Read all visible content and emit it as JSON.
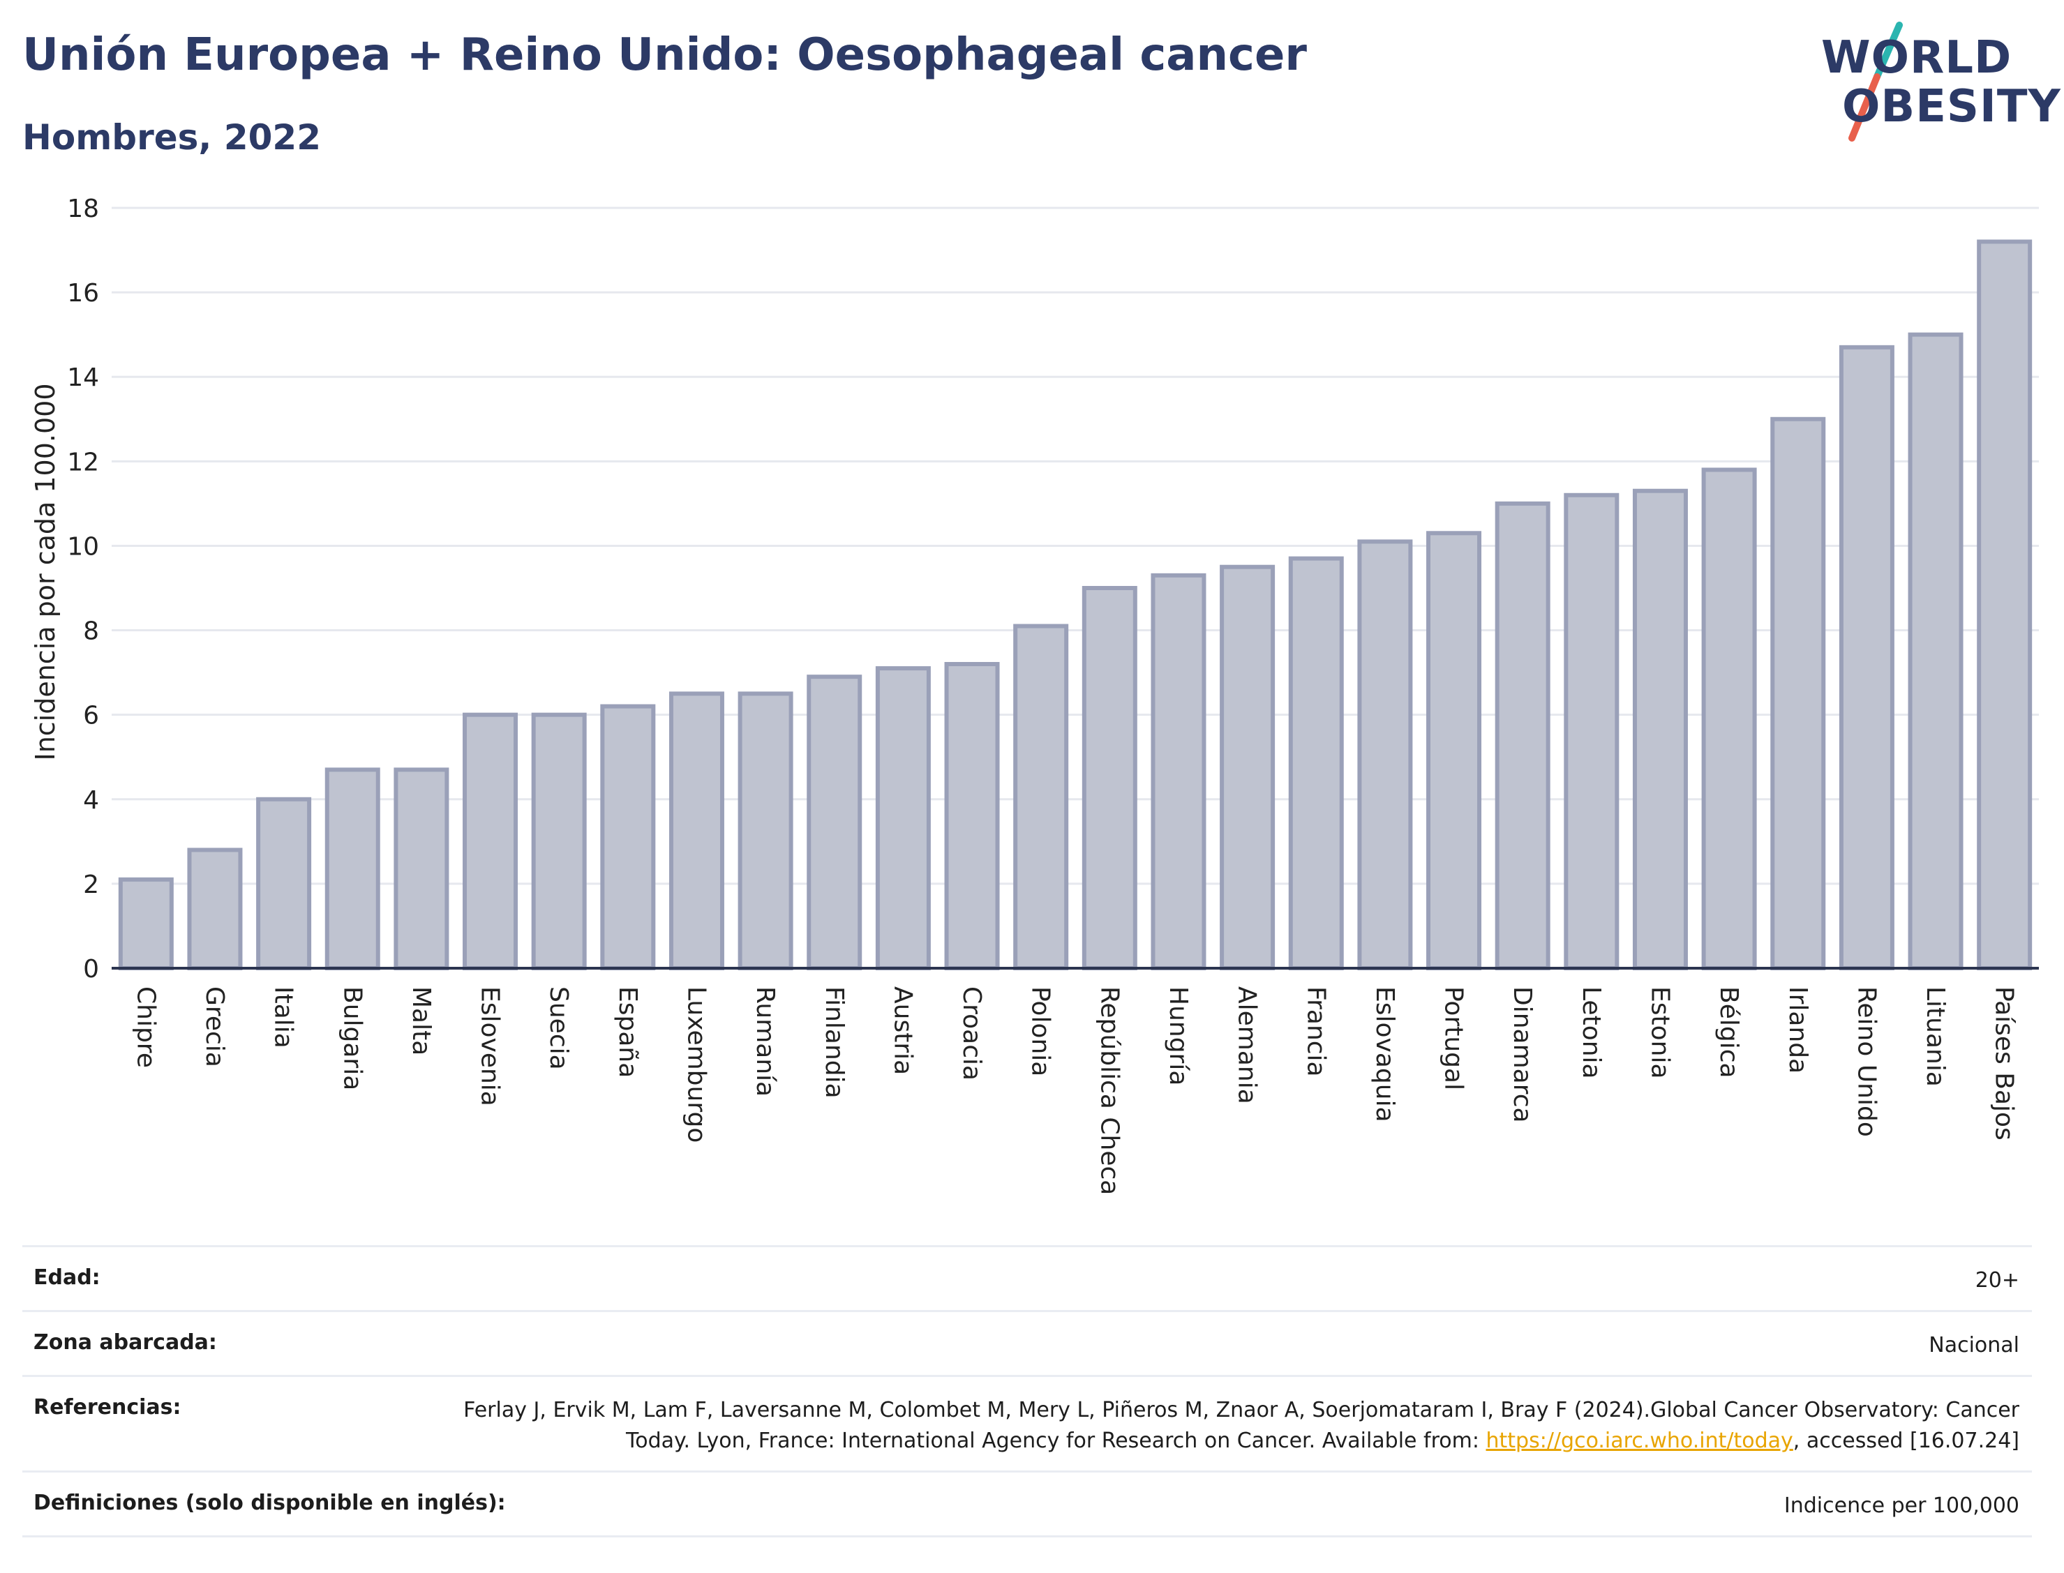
{
  "header": {
    "title": "Unión Europea + Reino Unido: Oesophageal cancer",
    "subtitle": "Hombres, 2022"
  },
  "logo": {
    "line1": "WORLD",
    "line2": "OBESITY",
    "slash_colors": [
      "#2bb5b0",
      "#e8604c"
    ]
  },
  "colors": {
    "bar_fill": "#bfc3d0",
    "bar_stroke": "#9aa0b8",
    "axis_line": "#2c3550",
    "grid": "#e6e8ee",
    "title": "#2c3a66",
    "link": "#e8a400"
  },
  "chart_data": {
    "type": "bar",
    "title": "Unión Europea + Reino Unido: Oesophageal cancer",
    "subtitle": "Hombres, 2022",
    "ylabel": "Incidencia por cada 100.000",
    "xlabel": "",
    "ylim": [
      0,
      18
    ],
    "yticks": [
      0,
      2,
      4,
      6,
      8,
      10,
      12,
      14,
      16,
      18
    ],
    "grid": true,
    "categories": [
      "Chipre",
      "Grecia",
      "Italia",
      "Bulgaria",
      "Malta",
      "Eslovenia",
      "Suecia",
      "España",
      "Luxemburgo",
      "Rumanía",
      "Finlandia",
      "Austria",
      "Croacia",
      "Polonia",
      "República Checa",
      "Hungría",
      "Alemania",
      "Francia",
      "Eslovaquia",
      "Portugal",
      "Dinamarca",
      "Letonia",
      "Estonia",
      "Bélgica",
      "Irlanda",
      "Reino Unido",
      "Lituania",
      "Países Bajos"
    ],
    "values": [
      2.1,
      2.8,
      4.0,
      4.7,
      4.7,
      6.0,
      6.0,
      6.2,
      6.5,
      6.5,
      6.9,
      7.1,
      7.2,
      8.1,
      9.0,
      9.3,
      9.5,
      9.7,
      10.1,
      10.3,
      11.0,
      11.2,
      11.3,
      11.8,
      13.0,
      14.7,
      15.0,
      17.2
    ]
  },
  "info": {
    "edad_label": "Edad:",
    "edad_value": "20+",
    "zona_label": "Zona abarcada:",
    "zona_value": "Nacional",
    "ref_label": "Referencias:",
    "ref_text_1": "Ferlay J, Ervik M, Lam F, Laversanne M, Colombet M, Mery L, Piñeros M, Znaor A, Soerjomataram I, Bray F (2024).Global Cancer Observatory: Cancer Today. Lyon, France: International Agency for Research on Cancer. Available from: ",
    "ref_link": "https://gco.iarc.who.int/today",
    "ref_text_2": ", accessed [16.07.24]",
    "def_label": "Definiciones (solo disponible en inglés):",
    "def_value": "Indicence per 100,000"
  }
}
